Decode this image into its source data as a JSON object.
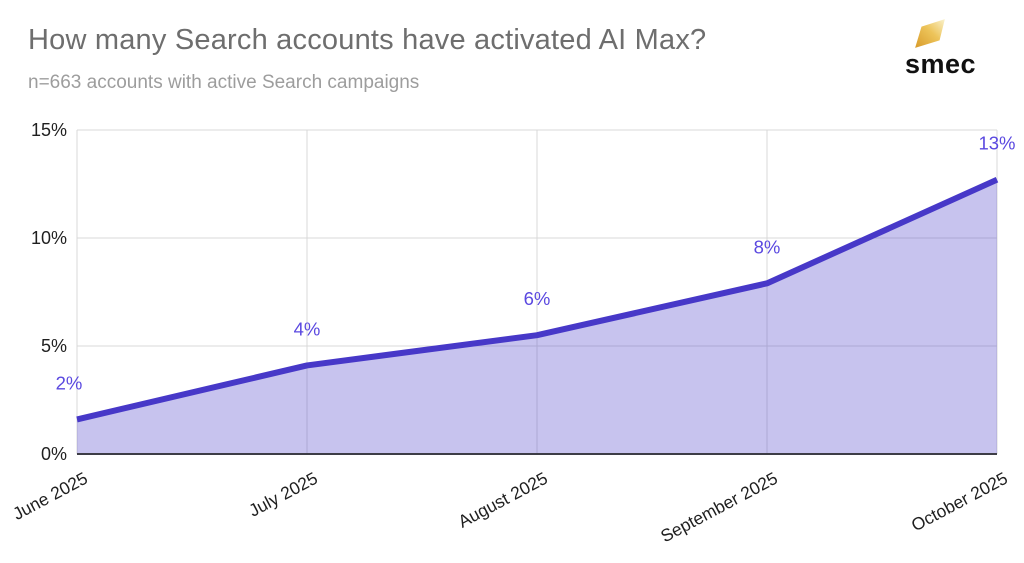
{
  "header": {
    "title": "How many Search accounts have activated AI Max?",
    "subtitle": "n=663 accounts with active Search campaigns"
  },
  "logo": {
    "name": "smec",
    "text": "smec",
    "mark_color_dark": "#d89b2b",
    "mark_color_light": "#faf2cd"
  },
  "chart_data": {
    "type": "area",
    "title": "How many Search accounts have activated AI Max?",
    "subtitle": "n=663 accounts with active Search campaigns",
    "categories": [
      "June 2025",
      "July 2025",
      "August 2025",
      "September 2025",
      "October 2025"
    ],
    "values": [
      2,
      4,
      6,
      8,
      13
    ],
    "plotted_values": [
      1.6,
      4.1,
      5.5,
      7.9,
      12.7
    ],
    "point_labels": [
      "2%",
      "4%",
      "6%",
      "8%",
      "13%"
    ],
    "xlabel": "",
    "ylabel": "",
    "ylim": [
      0,
      15
    ],
    "y_ticks": [
      {
        "label": "0%",
        "value": 0
      },
      {
        "label": "5%",
        "value": 5
      },
      {
        "label": "10%",
        "value": 10
      },
      {
        "label": "15%",
        "value": 15
      }
    ],
    "grid": true,
    "legend_position": "none",
    "colors": {
      "line": "#4738c8",
      "fill": "#4b3cc8",
      "fill_opacity": "0.31",
      "point_label": "#5a48e0",
      "gridline": "#d9d9d9",
      "baseline": "#3d3d46",
      "tick_text": "#1f1f1f"
    }
  }
}
